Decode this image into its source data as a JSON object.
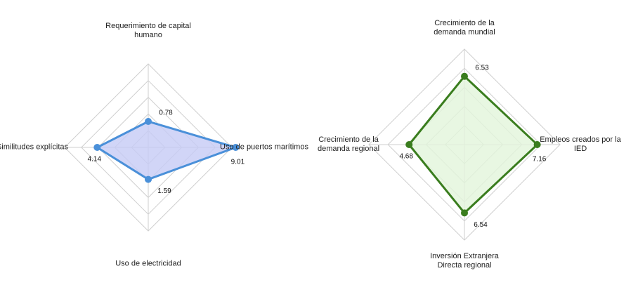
{
  "chart_data": [
    {
      "type": "radar",
      "categories": [
        "Requerimiento de capital humano",
        "Uso de puertos marítimos",
        "Uso de electricidad",
        "Similitudes explícitas"
      ],
      "values": [
        0.78,
        9.01,
        1.59,
        4.14
      ],
      "color": "#4a90d9",
      "fill": "#c5cbf5",
      "rlim": [
        -2.7,
        8.5
      ]
    },
    {
      "type": "radar",
      "categories": [
        "Crecimiento de la demanda mundial",
        "Empleos creados por la IED",
        "Inversión Extranjera Directa regional",
        "Crecimiento de la demanda regional"
      ],
      "values": [
        6.53,
        7.16,
        6.54,
        4.68
      ],
      "color": "#3a7d1e",
      "fill": "#e2f5db",
      "rlim": [
        -3.2,
        10.4
      ]
    }
  ]
}
